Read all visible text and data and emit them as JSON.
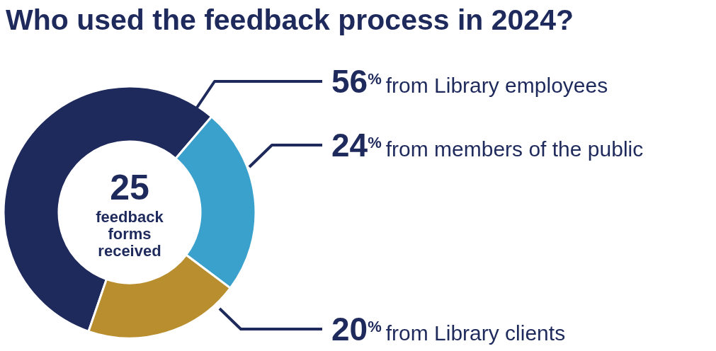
{
  "chart_data": {
    "type": "donut",
    "title": "Who used the feedback process in 2024?",
    "categories": [
      "from Library employees",
      "from members of the public",
      "from Library clients"
    ],
    "values": [
      56,
      24,
      20
    ],
    "value_labels": [
      "56%",
      "24%",
      "20%"
    ],
    "colors": [
      "#1f2a5c",
      "#3aa1cc",
      "#b98e2f"
    ],
    "annotations": [
      "25",
      "feedback forms received"
    ]
  }
}
